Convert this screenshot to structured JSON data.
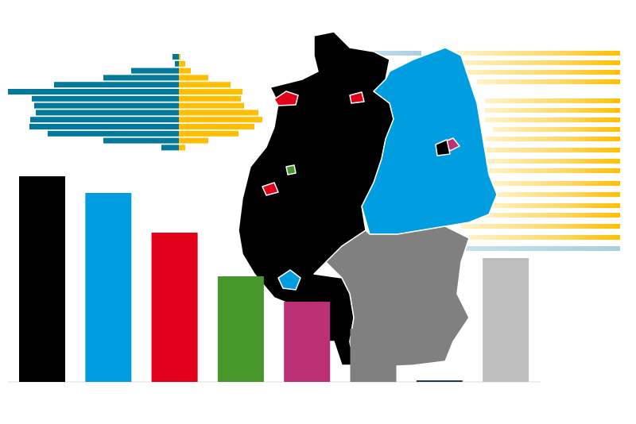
{
  "chart_data": [
    {
      "type": "bar",
      "categories": [
        null,
        null,
        null,
        null,
        null,
        null,
        null,
        null
      ],
      "values": [
        259,
        238,
        188,
        133,
        101,
        67,
        2,
        156
      ],
      "colors": [
        "#000000",
        "#009ee0",
        "#e3001b",
        "#46962b",
        "#be3075",
        "#808080",
        "#1b3a5c",
        "#bdbdbd"
      ],
      "ylim": [
        0,
        260
      ]
    },
    {
      "type": "butterfly",
      "categories": [
        null,
        null,
        null,
        null,
        null,
        null,
        null,
        null,
        null,
        null,
        null,
        null,
        null,
        null
      ],
      "series": [
        {
          "color": "#00799a",
          "values": [
            8,
            5,
            60,
            95,
            157,
            215,
            185,
            182,
            180,
            187,
            188,
            165,
            95,
            22
          ]
        },
        {
          "color": "#ffbf00",
          "values": [
            2,
            8,
            15,
            37,
            65,
            80,
            78,
            82,
            100,
            105,
            95,
            75,
            37,
            8
          ]
        }
      ],
      "xlim": [
        0,
        215
      ]
    }
  ]
}
